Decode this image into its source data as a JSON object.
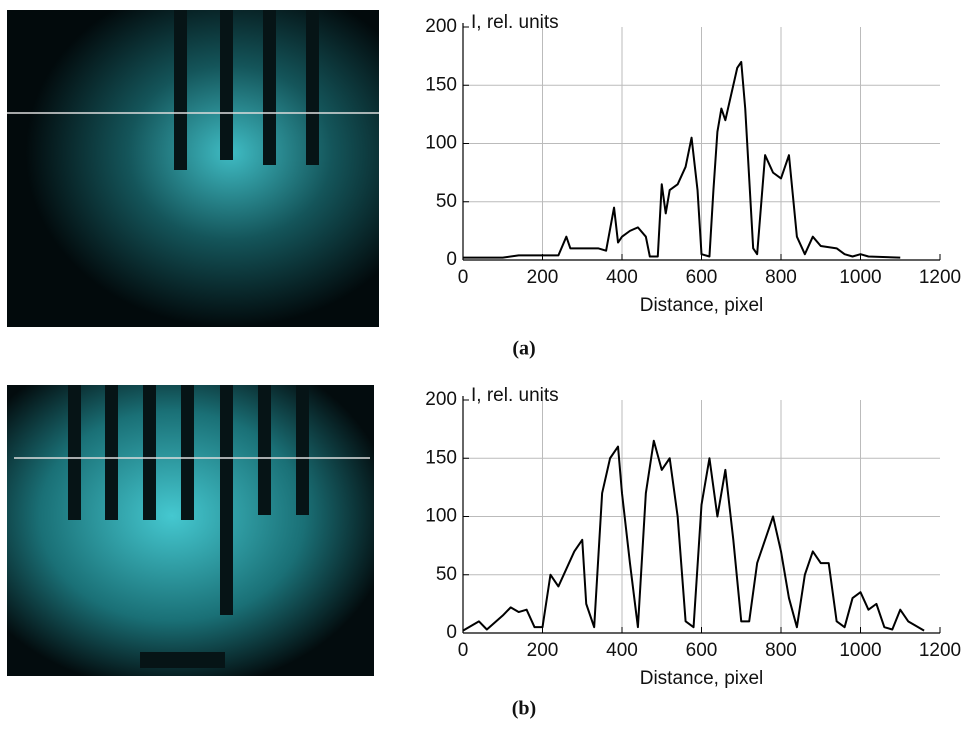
{
  "chart_data": [
    {
      "type": "line",
      "caption": "(a)",
      "xlabel": "Distance, pixel",
      "ylabel": "I, rel. units",
      "grid": true,
      "color": "#000000",
      "xlim": [
        0,
        1200
      ],
      "ylim": [
        0,
        200
      ],
      "xticks": [
        0,
        200,
        400,
        600,
        800,
        1000,
        1200
      ],
      "yticks": [
        0,
        50,
        100,
        150,
        200
      ],
      "x": [
        0,
        100,
        140,
        200,
        240,
        260,
        270,
        300,
        340,
        360,
        380,
        390,
        400,
        420,
        440,
        460,
        470,
        490,
        500,
        510,
        520,
        540,
        560,
        575,
        590,
        600,
        620,
        630,
        640,
        650,
        660,
        680,
        690,
        700,
        710,
        720,
        730,
        740,
        760,
        780,
        800,
        820,
        830,
        840,
        860,
        880,
        900,
        940,
        960,
        980,
        1000,
        1020,
        1100
      ],
      "values": [
        2,
        2,
        4,
        4,
        4,
        20,
        10,
        10,
        10,
        8,
        45,
        15,
        20,
        25,
        28,
        20,
        3,
        3,
        65,
        40,
        60,
        65,
        80,
        105,
        60,
        5,
        3,
        60,
        110,
        130,
        120,
        150,
        165,
        170,
        130,
        70,
        10,
        5,
        90,
        75,
        70,
        90,
        55,
        20,
        5,
        20,
        12,
        10,
        5,
        3,
        5,
        3,
        2
      ]
    },
    {
      "type": "line",
      "caption": "(b)",
      "xlabel": "Distance, pixel",
      "ylabel": "I, rel. units",
      "grid": true,
      "color": "#000000",
      "xlim": [
        0,
        1200
      ],
      "ylim": [
        0,
        200
      ],
      "xticks": [
        0,
        200,
        400,
        600,
        800,
        1000,
        1200
      ],
      "yticks": [
        0,
        50,
        100,
        150,
        200
      ],
      "x": [
        0,
        40,
        60,
        100,
        120,
        140,
        160,
        180,
        200,
        220,
        240,
        260,
        280,
        300,
        310,
        330,
        350,
        370,
        390,
        400,
        420,
        440,
        460,
        480,
        500,
        520,
        540,
        560,
        580,
        600,
        620,
        640,
        660,
        680,
        700,
        720,
        740,
        760,
        780,
        800,
        820,
        840,
        860,
        880,
        900,
        920,
        940,
        960,
        980,
        1000,
        1020,
        1040,
        1060,
        1080,
        1100,
        1120,
        1160
      ],
      "values": [
        2,
        10,
        3,
        15,
        22,
        18,
        20,
        5,
        5,
        50,
        40,
        55,
        70,
        80,
        25,
        5,
        120,
        150,
        160,
        120,
        60,
        5,
        120,
        165,
        140,
        150,
        100,
        10,
        5,
        110,
        150,
        100,
        140,
        80,
        10,
        10,
        60,
        80,
        100,
        70,
        30,
        5,
        50,
        70,
        60,
        60,
        10,
        5,
        30,
        35,
        20,
        25,
        5,
        3,
        20,
        10,
        2
      ]
    }
  ]
}
